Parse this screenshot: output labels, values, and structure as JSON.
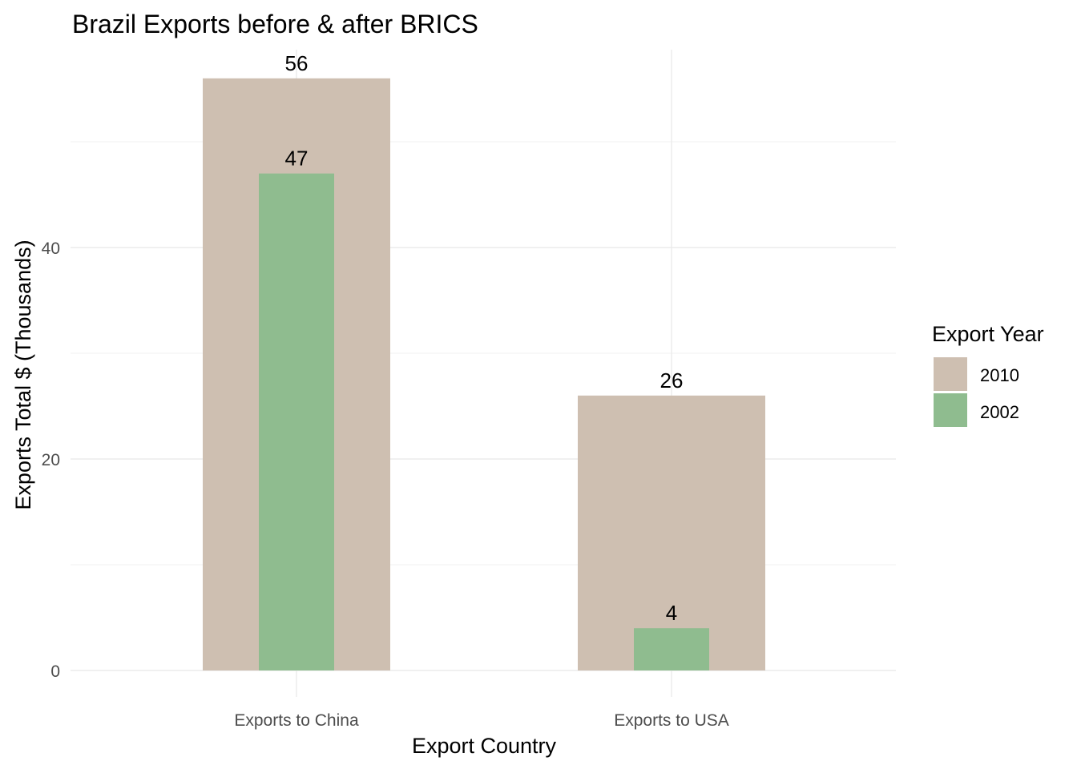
{
  "chart_data": {
    "type": "bar",
    "title": "Brazil Exports before & after BRICS",
    "xlabel": "Export Country",
    "ylabel": "Exports Total $ (Thousands)",
    "categories": [
      "Exports to China",
      "Exports to USA"
    ],
    "series": [
      {
        "name": "2010",
        "values": [
          56,
          26
        ],
        "color": "#CEBFB1"
      },
      {
        "name": "2002",
        "values": [
          47,
          4
        ],
        "color": "#8FBC8F"
      }
    ],
    "ylim": [
      0,
      58.8
    ],
    "yticks": [
      0,
      20,
      40
    ],
    "yminor": [
      10,
      30,
      50
    ],
    "grid": true,
    "bar_mode": "overlapping",
    "legend": {
      "title": "Export Year",
      "position": "right"
    }
  }
}
